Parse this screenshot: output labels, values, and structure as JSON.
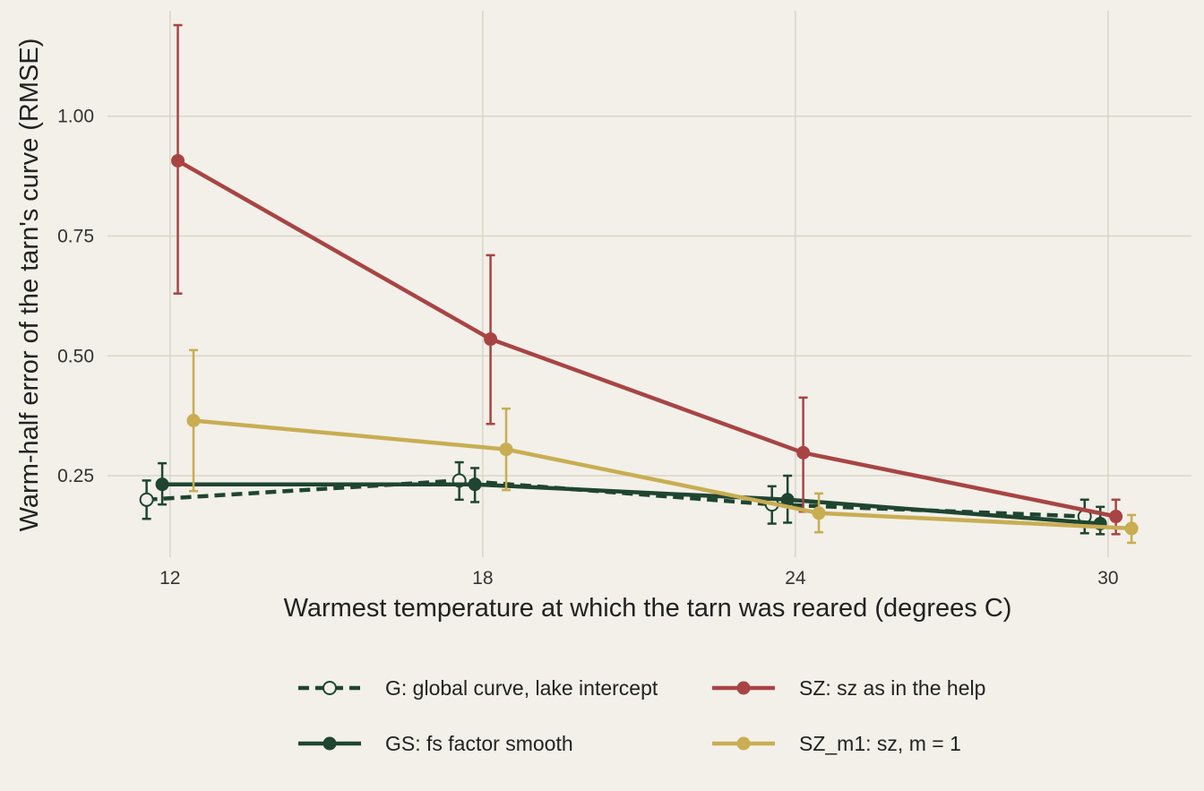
{
  "chart_data": {
    "type": "line",
    "title": "",
    "xlabel": "Warmest temperature at which the tarn was reared (degrees C)",
    "ylabel": "Warm-half error of the tarn's curve (RMSE)",
    "x": [
      12,
      18,
      24,
      30
    ],
    "x_tick_labels": [
      "12",
      "18",
      "24",
      "30"
    ],
    "y_ticks": [
      0.25,
      0.5,
      0.75,
      1.0
    ],
    "y_tick_labels": [
      "0.25",
      "0.50",
      "0.75",
      "1.00"
    ],
    "xlim": [
      10.8,
      31.6
    ],
    "ylim": [
      0.08,
      1.22
    ],
    "grid": true,
    "legend_position": "bottom",
    "series": [
      {
        "name": "G: global curve, lake intercept",
        "color": "#1f4530",
        "line_style": "dashed",
        "marker": "open-circle",
        "x_offset": -0.45,
        "values": [
          0.2,
          0.24,
          0.19,
          0.165
        ],
        "error_low": [
          0.16,
          0.2,
          0.15,
          0.13
        ],
        "error_high": [
          0.24,
          0.278,
          0.228,
          0.2
        ]
      },
      {
        "name": "GS: fs factor smooth",
        "color": "#1f4530",
        "line_style": "solid",
        "marker": "filled-circle",
        "x_offset": -0.15,
        "values": [
          0.232,
          0.232,
          0.2,
          0.15
        ],
        "error_low": [
          0.19,
          0.195,
          0.152,
          0.128
        ],
        "error_high": [
          0.276,
          0.266,
          0.25,
          0.185
        ]
      },
      {
        "name": "SZ: sz as in the help",
        "color": "#a84444",
        "line_style": "solid",
        "marker": "filled-circle",
        "x_offset": 0.15,
        "values": [
          0.907,
          0.535,
          0.298,
          0.165
        ],
        "error_low": [
          0.63,
          0.358,
          0.175,
          0.128
        ],
        "error_high": [
          1.19,
          0.71,
          0.413,
          0.2
        ]
      },
      {
        "name": "SZ_m1: sz, m = 1",
        "color": "#c8ad52",
        "line_style": "solid",
        "marker": "filled-circle",
        "x_offset": 0.45,
        "values": [
          0.365,
          0.305,
          0.172,
          0.14
        ],
        "error_low": [
          0.218,
          0.22,
          0.132,
          0.11
        ],
        "error_high": [
          0.512,
          0.39,
          0.213,
          0.168
        ]
      }
    ]
  }
}
